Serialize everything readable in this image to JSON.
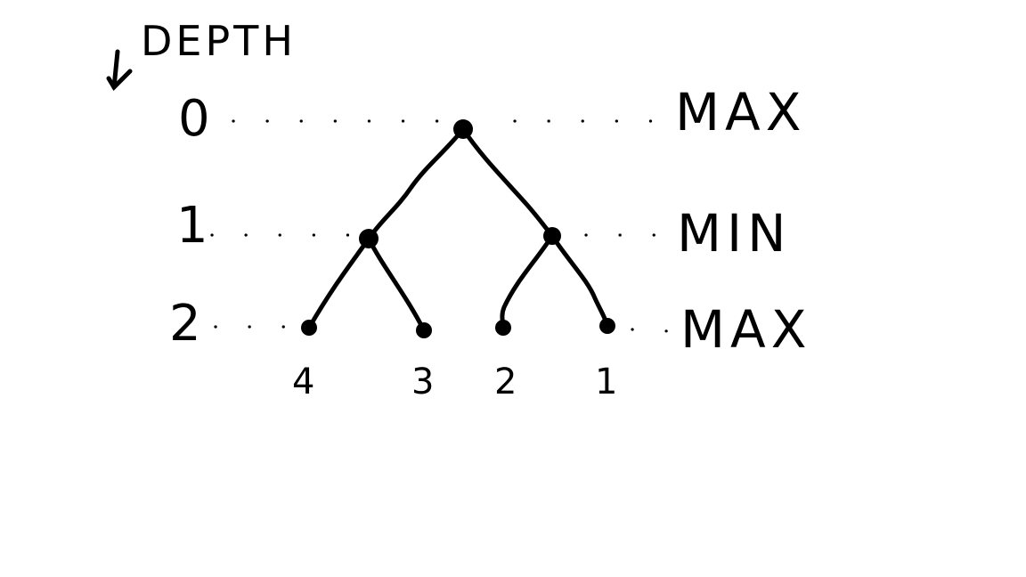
{
  "header": {
    "title": "DEPTH",
    "arrow_icon": "arrow-down-icon"
  },
  "levels": [
    {
      "depth": "0",
      "player": "MAX"
    },
    {
      "depth": "1",
      "player": "MIN"
    },
    {
      "depth": "2",
      "player": "MAX"
    }
  ],
  "tree": {
    "root": {
      "depth": 0
    },
    "internal": [
      {
        "depth": 1
      },
      {
        "depth": 1
      }
    ],
    "leaves": [
      {
        "value": "4"
      },
      {
        "value": "3"
      },
      {
        "value": "2"
      },
      {
        "value": "1"
      }
    ]
  }
}
